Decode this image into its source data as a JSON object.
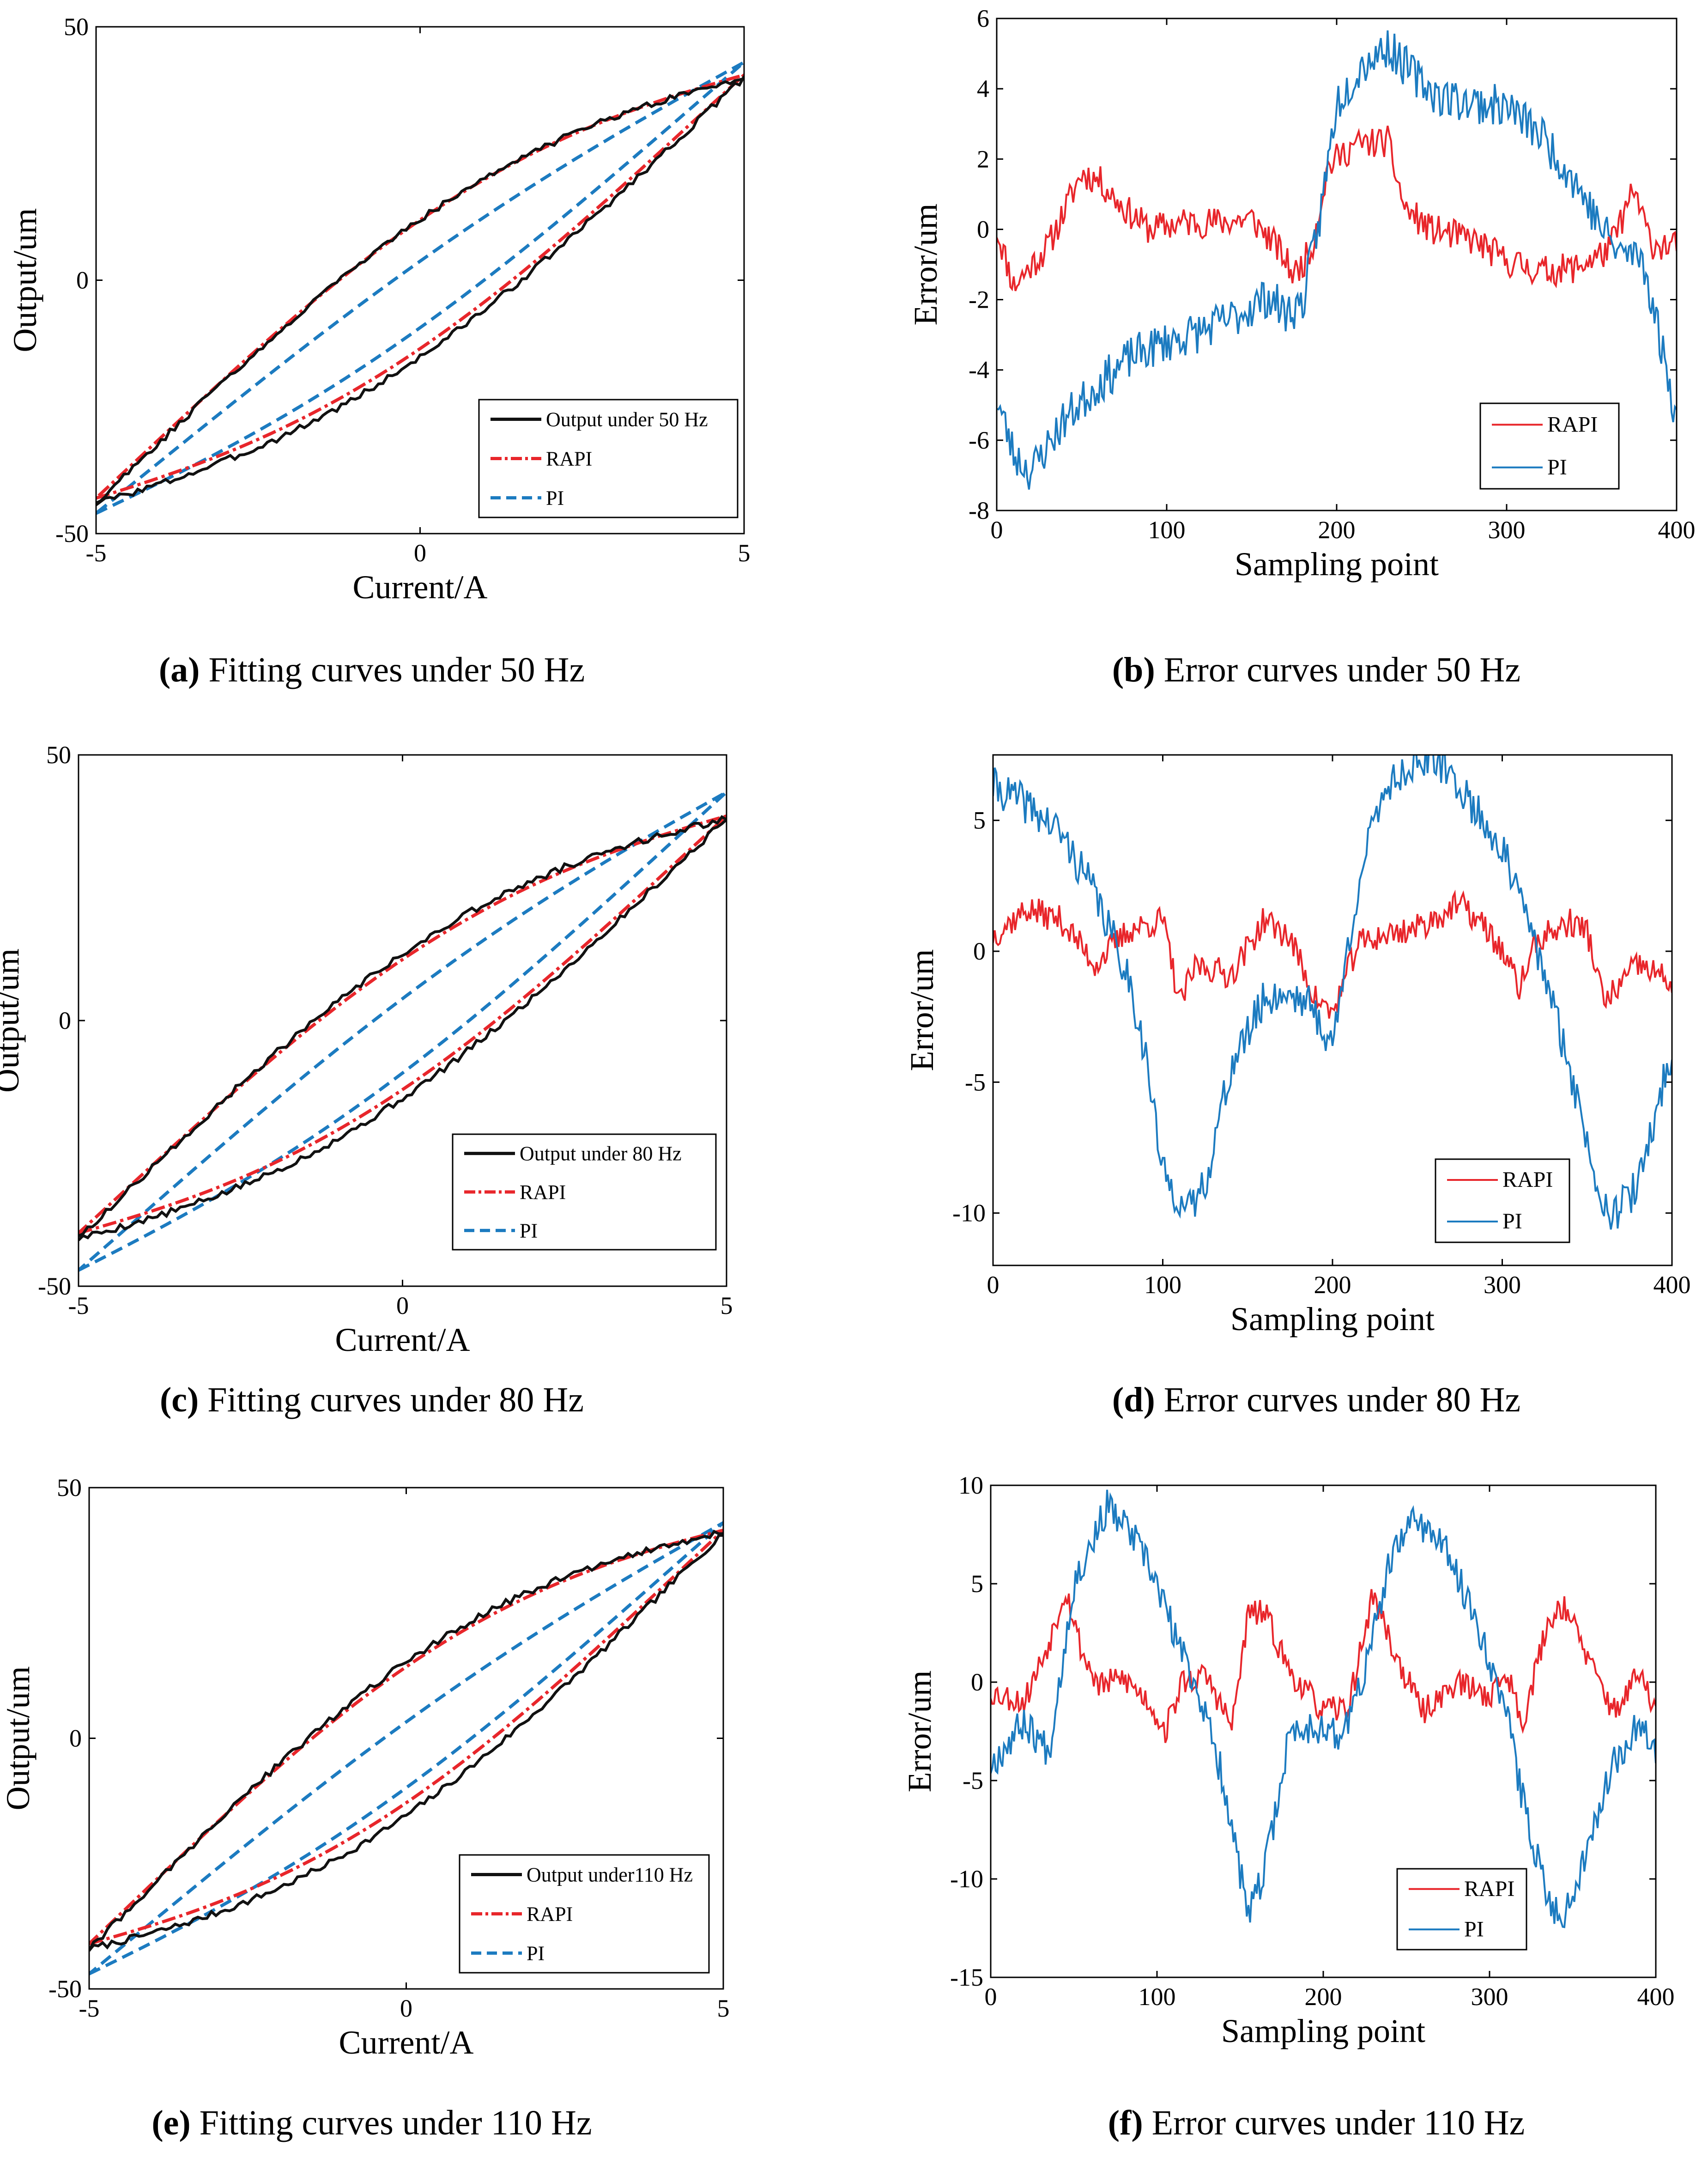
{
  "colors": {
    "output": "#111111",
    "rapi": "#e8262b",
    "pi": "#1c7bc0",
    "axis": "#000000",
    "background": "#ffffff"
  },
  "chart_data": [
    {
      "id": "a",
      "type": "line",
      "kind": "fitting",
      "caption_letter": "(a)",
      "caption_text": " Fitting curves under 50 Hz",
      "xlabel": "Current/A",
      "ylabel": "Output/um",
      "xlim": [
        -5,
        5
      ],
      "ylim": [
        -50,
        50
      ],
      "xticks": [
        -5,
        0,
        5
      ],
      "yticks": [
        -50,
        0,
        50
      ],
      "xtick_labels": [
        "-5",
        "0",
        "5"
      ],
      "ytick_labels": [
        "-50",
        "0",
        "50"
      ],
      "legend": [
        "Output under 50 Hz",
        "RAPI",
        "PI"
      ],
      "params": {
        "ymin": -44,
        "ymax": 40,
        "wu": 16,
        "wl": 15,
        "rapiWu": 15,
        "rapiWl": 14,
        "piWu": 6,
        "piWl": 9,
        "piTop": 43,
        "piBot": -46
      }
    },
    {
      "id": "b",
      "type": "line",
      "kind": "error",
      "caption_letter": "(b)",
      "caption_text": " Error curves under 50 Hz",
      "xlabel": "Sampling point",
      "ylabel": "Error/um",
      "xlim": [
        0,
        400
      ],
      "ylim": [
        -8,
        6
      ],
      "xticks": [
        0,
        100,
        200,
        300,
        400
      ],
      "yticks": [
        -8,
        -6,
        -4,
        -2,
        0,
        2,
        4,
        6
      ],
      "xtick_labels": [
        "0",
        "100",
        "200",
        "300",
        "400"
      ],
      "ytick_labels": [
        "-8",
        "-6",
        "-4",
        "-2",
        "0",
        "2",
        "4",
        "6"
      ],
      "legend": [
        "RAPI",
        "PI"
      ],
      "series": [
        {
          "name": "RAPI",
          "noise": 0.45,
          "seed": 11,
          "x": [
            0,
            10,
            30,
            50,
            60,
            75,
            90,
            110,
            130,
            150,
            165,
            175,
            185,
            195,
            210,
            230,
            240,
            255,
            280,
            300,
            320,
            340,
            360,
            375,
            385,
            400
          ],
          "values": [
            0,
            -1.6,
            -0.5,
            1.6,
            1.4,
            0.6,
            0,
            0.2,
            0.2,
            0.3,
            -0.5,
            -1.3,
            -0.6,
            1.8,
            2.4,
            2.5,
            0.6,
            0,
            -0.3,
            -0.9,
            -1.2,
            -1.1,
            -0.6,
            1.1,
            -0.4,
            -0.5
          ]
        },
        {
          "name": "PI",
          "noise": 0.6,
          "seed": 23,
          "x": [
            0,
            10,
            20,
            40,
            60,
            80,
            100,
            120,
            140,
            160,
            170,
            180,
            190,
            200,
            215,
            230,
            245,
            260,
            280,
            300,
            320,
            340,
            355,
            365,
            380,
            395,
            400
          ],
          "values": [
            -4.8,
            -6.4,
            -6.9,
            -5.4,
            -4.4,
            -3.6,
            -3.2,
            -2.9,
            -2.5,
            -1.9,
            -2.4,
            -2.1,
            0.3,
            3.6,
            4.7,
            5.2,
            4.4,
            3.8,
            3.6,
            3.5,
            2.7,
            1.4,
            0.1,
            -0.6,
            -0.8,
            -4.2,
            -5.4
          ]
        }
      ]
    },
    {
      "id": "c",
      "type": "line",
      "kind": "fitting",
      "caption_letter": "(c)",
      "caption_text": " Fitting curves under 80 Hz",
      "xlabel": "Current/A",
      "ylabel": "Output/um",
      "xlim": [
        -5,
        5
      ],
      "ylim": [
        -50,
        50
      ],
      "xticks": [
        -5,
        0,
        5
      ],
      "yticks": [
        -50,
        0,
        50
      ],
      "xtick_labels": [
        "-5",
        "0",
        "5"
      ],
      "ytick_labels": [
        "-50",
        "0",
        "50"
      ],
      "legend": [
        "Output under 80 Hz",
        "RAPI",
        "PI"
      ],
      "params": {
        "ymin": -41,
        "ymax": 38,
        "wu": 16,
        "wl": 15,
        "rapiWu": 14,
        "rapiWl": 14,
        "piWu": 7,
        "piWl": 9,
        "piTop": 43,
        "piBot": -47
      }
    },
    {
      "id": "d",
      "type": "line",
      "kind": "error",
      "caption_letter": "(d)",
      "caption_text": " Error curves under 80 Hz",
      "xlabel": "Sampling point",
      "ylabel": "Error/um",
      "xlim": [
        0,
        400
      ],
      "ylim": [
        -12,
        7.5
      ],
      "xticks": [
        0,
        100,
        200,
        300,
        400
      ],
      "yticks": [
        -10,
        -5,
        0,
        5
      ],
      "xtick_labels": [
        "0",
        "100",
        "200",
        "300",
        "400"
      ],
      "ytick_labels": [
        "-10",
        "-5",
        "0",
        "5"
      ],
      "legend": [
        "RAPI",
        "PI"
      ],
      "series": [
        {
          "name": "RAPI",
          "noise": 0.55,
          "seed": 37,
          "x": [
            0,
            20,
            40,
            60,
            80,
            100,
            110,
            120,
            140,
            160,
            175,
            190,
            200,
            215,
            230,
            250,
            275,
            290,
            300,
            310,
            320,
            340,
            350,
            360,
            380,
            400
          ],
          "values": [
            0.6,
            1.6,
            1.2,
            -0.5,
            0.8,
            1.2,
            -2,
            -0.5,
            -0.9,
            1.2,
            0.5,
            -1.8,
            -2.4,
            0.3,
            0.6,
            0.9,
            1.8,
            0.9,
            0,
            -1.4,
            0.4,
            1.1,
            0.8,
            -2,
            -0.5,
            -1.2
          ]
        },
        {
          "name": "PI",
          "noise": 0.75,
          "seed": 41,
          "x": [
            0,
            20,
            40,
            60,
            80,
            90,
            100,
            115,
            125,
            140,
            160,
            175,
            185,
            200,
            215,
            230,
            250,
            265,
            280,
            300,
            320,
            340,
            355,
            365,
            380,
            390,
            400
          ],
          "values": [
            6.3,
            5.6,
            4.5,
            2.2,
            -1,
            -4,
            -8.5,
            -10,
            -8.8,
            -4.5,
            -1.8,
            -1.6,
            -1.9,
            -3.6,
            2.5,
            6.2,
            7.3,
            7.1,
            5.8,
            3.9,
            0.2,
            -4.5,
            -8.7,
            -10.1,
            -9,
            -6.3,
            -3.8
          ]
        }
      ]
    },
    {
      "id": "e",
      "type": "line",
      "kind": "fitting",
      "caption_letter": "(e)",
      "caption_text": " Fitting curves under 110 Hz",
      "xlabel": "Current/A",
      "ylabel": "Output/um",
      "xlim": [
        -5,
        5
      ],
      "ylim": [
        -50,
        50
      ],
      "xticks": [
        -5,
        0,
        5
      ],
      "yticks": [
        -50,
        0,
        50
      ],
      "xtick_labels": [
        "-5",
        "0",
        "5"
      ],
      "ytick_labels": [
        "-50",
        "0",
        "50"
      ],
      "legend": [
        "Output under110 Hz",
        "RAPI",
        "PI"
      ],
      "params": {
        "ymin": -42,
        "ymax": 41,
        "wu": 18,
        "wl": 17,
        "rapiWu": 16,
        "rapiWl": 15,
        "piWu": 6,
        "piWl": 9,
        "piTop": 43,
        "piBot": -47
      }
    },
    {
      "id": "f",
      "type": "line",
      "kind": "error",
      "caption_letter": "(f)",
      "caption_text": " Error curves under 110 Hz",
      "xlabel": "Sampling point",
      "ylabel": "Error/um",
      "xlim": [
        0,
        400
      ],
      "ylim": [
        -15,
        10
      ],
      "xticks": [
        0,
        100,
        200,
        300,
        400
      ],
      "yticks": [
        -15,
        -10,
        -5,
        0,
        5,
        10
      ],
      "xtick_labels": [
        "0",
        "100",
        "200",
        "300",
        "400"
      ],
      "ytick_labels": [
        "-15",
        "-10",
        "-5",
        "0",
        "5",
        "10"
      ],
      "legend": [
        "RAPI",
        "PI"
      ],
      "series": [
        {
          "name": "RAPI",
          "noise": 0.7,
          "seed": 53,
          "x": [
            0,
            20,
            35,
            45,
            55,
            65,
            80,
            95,
            105,
            115,
            130,
            145,
            155,
            165,
            180,
            200,
            215,
            230,
            245,
            260,
            280,
            300,
            310,
            320,
            335,
            345,
            360,
            375,
            390,
            400
          ],
          "values": [
            -0.5,
            -1,
            2,
            4.8,
            1.5,
            -0.2,
            0.2,
            -1,
            -2.5,
            0,
            0.3,
            -2.3,
            3.5,
            3.5,
            0.5,
            -1.5,
            -1.3,
            4.5,
            1,
            -1.5,
            0,
            -0.7,
            0.5,
            -2,
            3,
            4,
            1,
            -1.5,
            0.4,
            -1.4
          ]
        },
        {
          "name": "PI",
          "noise": 0.9,
          "seed": 67,
          "x": [
            0,
            20,
            35,
            50,
            70,
            85,
            100,
            110,
            125,
            140,
            155,
            165,
            180,
            200,
            210,
            225,
            240,
            255,
            275,
            295,
            310,
            320,
            335,
            345,
            360,
            375,
            390,
            400
          ],
          "values": [
            -4.2,
            -2,
            -3.5,
            5,
            8.9,
            7.5,
            5,
            2.5,
            -0.5,
            -5,
            -12,
            -9.5,
            -2.5,
            -2.2,
            -3,
            0.5,
            6,
            8.5,
            6.5,
            2.5,
            -1.5,
            -6,
            -11,
            -12,
            -8,
            -4,
            -2,
            -3.3
          ]
        }
      ]
    }
  ]
}
